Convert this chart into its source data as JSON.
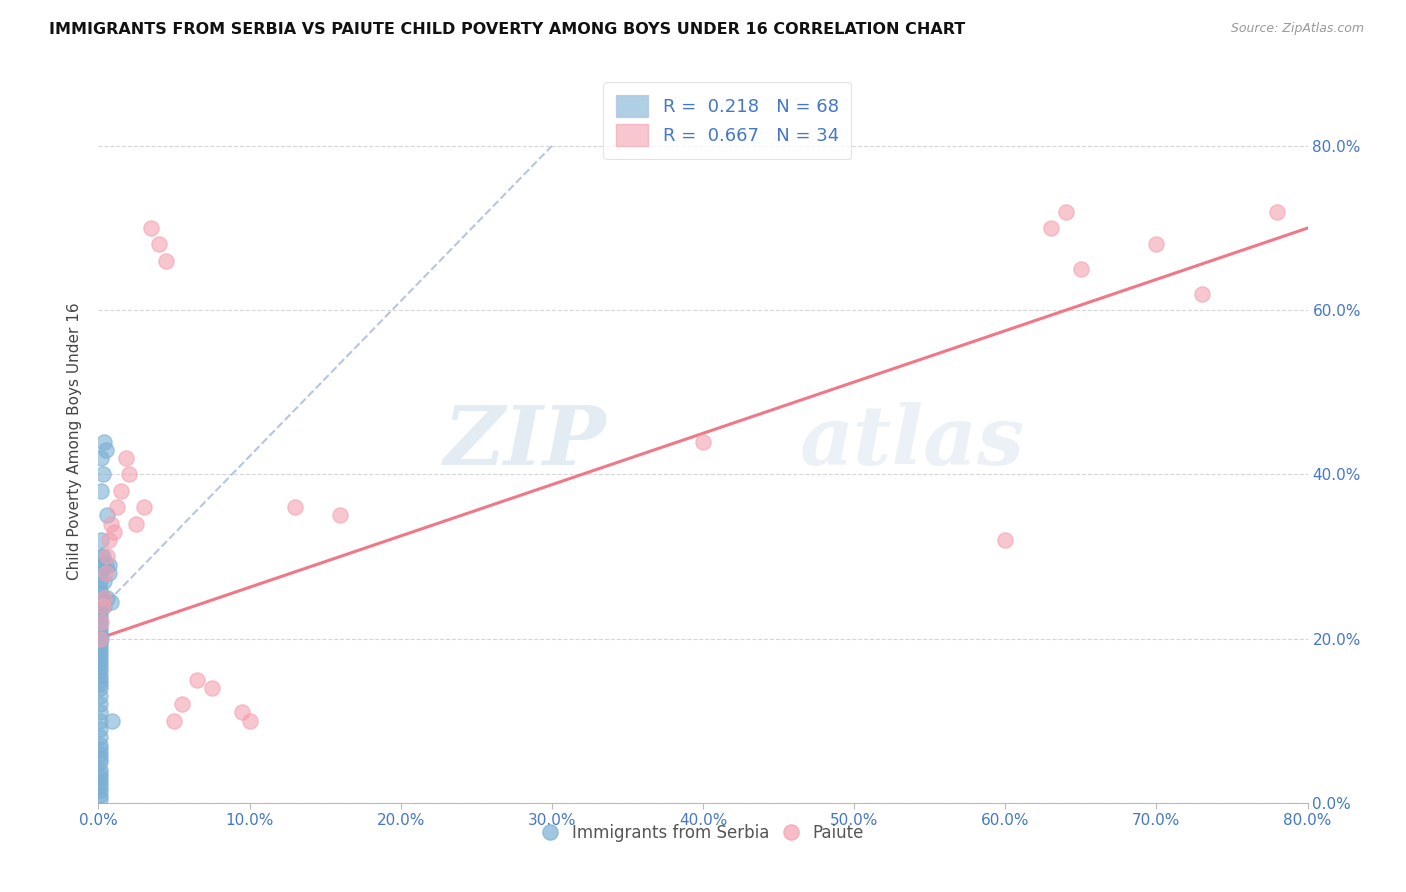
{
  "title": "IMMIGRANTS FROM SERBIA VS PAIUTE CHILD POVERTY AMONG BOYS UNDER 16 CORRELATION CHART",
  "source": "Source: ZipAtlas.com",
  "ylabel": "Child Poverty Among Boys Under 16",
  "xlim": [
    0,
    0.8
  ],
  "ylim": [
    0,
    0.88
  ],
  "legend_labels": [
    "Immigrants from Serbia",
    "Paiute"
  ],
  "serbia_R": "0.218",
  "serbia_N": "68",
  "paiute_R": "0.667",
  "paiute_N": "34",
  "serbia_color": "#7BAFD4",
  "paiute_color": "#F4A0B0",
  "serbia_trend_color": "#AABBDD",
  "paiute_trend_color": "#F07080",
  "watermark_zip": "ZIP",
  "watermark_atlas": "atlas",
  "serbia_x": [
    0.001,
    0.001,
    0.001,
    0.001,
    0.001,
    0.001,
    0.001,
    0.001,
    0.001,
    0.001,
    0.001,
    0.001,
    0.001,
    0.001,
    0.001,
    0.001,
    0.001,
    0.001,
    0.001,
    0.001,
    0.001,
    0.001,
    0.001,
    0.001,
    0.001,
    0.001,
    0.001,
    0.001,
    0.001,
    0.001,
    0.001,
    0.001,
    0.001,
    0.001,
    0.001,
    0.001,
    0.001,
    0.001,
    0.001,
    0.001,
    0.001,
    0.001,
    0.001,
    0.001,
    0.001,
    0.001,
    0.002,
    0.002,
    0.002,
    0.002,
    0.002,
    0.002,
    0.002,
    0.003,
    0.003,
    0.003,
    0.003,
    0.004,
    0.004,
    0.004,
    0.005,
    0.005,
    0.006,
    0.006,
    0.007,
    0.007,
    0.008,
    0.009
  ],
  "serbia_y": [
    0.005,
    0.01,
    0.015,
    0.02,
    0.025,
    0.03,
    0.035,
    0.04,
    0.05,
    0.055,
    0.06,
    0.065,
    0.07,
    0.08,
    0.09,
    0.1,
    0.11,
    0.12,
    0.13,
    0.14,
    0.145,
    0.15,
    0.155,
    0.16,
    0.165,
    0.17,
    0.175,
    0.18,
    0.185,
    0.19,
    0.195,
    0.2,
    0.205,
    0.21,
    0.215,
    0.22,
    0.225,
    0.23,
    0.235,
    0.24,
    0.245,
    0.25,
    0.255,
    0.26,
    0.27,
    0.28,
    0.2,
    0.245,
    0.29,
    0.3,
    0.32,
    0.38,
    0.42,
    0.25,
    0.29,
    0.3,
    0.4,
    0.24,
    0.27,
    0.44,
    0.29,
    0.43,
    0.25,
    0.35,
    0.28,
    0.29,
    0.245,
    0.1
  ],
  "paiute_x": [
    0.001,
    0.002,
    0.003,
    0.004,
    0.005,
    0.006,
    0.007,
    0.008,
    0.01,
    0.012,
    0.015,
    0.018,
    0.02,
    0.025,
    0.03,
    0.035,
    0.04,
    0.045,
    0.05,
    0.055,
    0.065,
    0.075,
    0.095,
    0.1,
    0.13,
    0.16,
    0.4,
    0.6,
    0.63,
    0.64,
    0.65,
    0.7,
    0.73,
    0.78
  ],
  "paiute_y": [
    0.2,
    0.22,
    0.24,
    0.25,
    0.28,
    0.3,
    0.32,
    0.34,
    0.33,
    0.36,
    0.38,
    0.42,
    0.4,
    0.34,
    0.36,
    0.7,
    0.68,
    0.66,
    0.1,
    0.12,
    0.15,
    0.14,
    0.11,
    0.1,
    0.36,
    0.35,
    0.44,
    0.32,
    0.7,
    0.72,
    0.65,
    0.68,
    0.62,
    0.72
  ],
  "serbia_trend_x": [
    0.001,
    0.3
  ],
  "serbia_trend_y": [
    0.235,
    0.8
  ],
  "paiute_trend_x": [
    0.0,
    0.8
  ],
  "paiute_trend_y": [
    0.2,
    0.7
  ]
}
